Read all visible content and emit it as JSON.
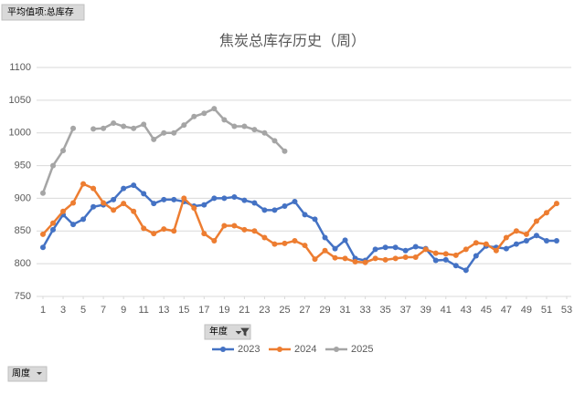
{
  "pivot": {
    "value_field": "平均值项:总库存",
    "column_field": "年度",
    "row_field": "周度"
  },
  "chart_data": {
    "type": "line",
    "title": "焦炭总库存历史（周）",
    "x": [
      1,
      2,
      3,
      4,
      5,
      6,
      7,
      8,
      9,
      10,
      11,
      12,
      13,
      14,
      15,
      16,
      17,
      18,
      19,
      20,
      21,
      22,
      23,
      24,
      25,
      26,
      27,
      28,
      29,
      30,
      31,
      32,
      33,
      34,
      35,
      36,
      37,
      38,
      39,
      40,
      41,
      42,
      43,
      44,
      45,
      46,
      47,
      48,
      49,
      50,
      51,
      52
    ],
    "xlim": [
      1,
      53
    ],
    "xticks": [
      1,
      3,
      5,
      7,
      9,
      11,
      13,
      15,
      17,
      19,
      21,
      23,
      25,
      27,
      29,
      31,
      33,
      35,
      37,
      39,
      41,
      43,
      45,
      47,
      49,
      51,
      53
    ],
    "ylim": [
      750,
      1100
    ],
    "yticks": [
      750,
      800,
      850,
      900,
      950,
      1000,
      1050,
      1100
    ],
    "grid": true,
    "legend": "bottom",
    "series": [
      {
        "name": "2023",
        "color": "#4472c4",
        "values": [
          825,
          852,
          875,
          860,
          868,
          887,
          890,
          898,
          915,
          920,
          907,
          892,
          898,
          898,
          895,
          888,
          890,
          900,
          900,
          902,
          897,
          893,
          882,
          882,
          888,
          895,
          875,
          868,
          840,
          823,
          836,
          808,
          805,
          822,
          825,
          825,
          820,
          826,
          823,
          805,
          806,
          797,
          790,
          812,
          827,
          825,
          823,
          830,
          835,
          843,
          835,
          835
        ]
      },
      {
        "name": "2024",
        "color": "#ed7d31",
        "values": [
          845,
          862,
          880,
          893,
          922,
          915,
          893,
          882,
          892,
          880,
          854,
          846,
          853,
          850,
          900,
          885,
          846,
          835,
          858,
          858,
          852,
          850,
          840,
          830,
          831,
          835,
          828,
          807,
          820,
          809,
          808,
          803,
          802,
          808,
          806,
          808,
          810,
          810,
          822,
          816,
          815,
          813,
          822,
          832,
          830,
          820,
          840,
          850,
          845,
          865,
          878,
          892
        ]
      },
      {
        "name": "2025",
        "color": "#a5a5a5",
        "values": [
          908,
          950,
          973,
          1007,
          null,
          1006,
          1007,
          1015,
          1010,
          1007,
          1013,
          990,
          1000,
          1000,
          1012,
          1025,
          1030,
          1037,
          1020,
          1010,
          1010,
          1005,
          1000,
          988,
          972,
          null,
          null,
          null,
          null,
          null,
          null,
          null,
          null,
          null,
          null,
          null,
          null,
          null,
          null,
          null,
          null,
          null,
          null,
          null,
          null,
          null,
          null,
          null,
          null,
          null,
          null,
          null
        ]
      }
    ]
  }
}
